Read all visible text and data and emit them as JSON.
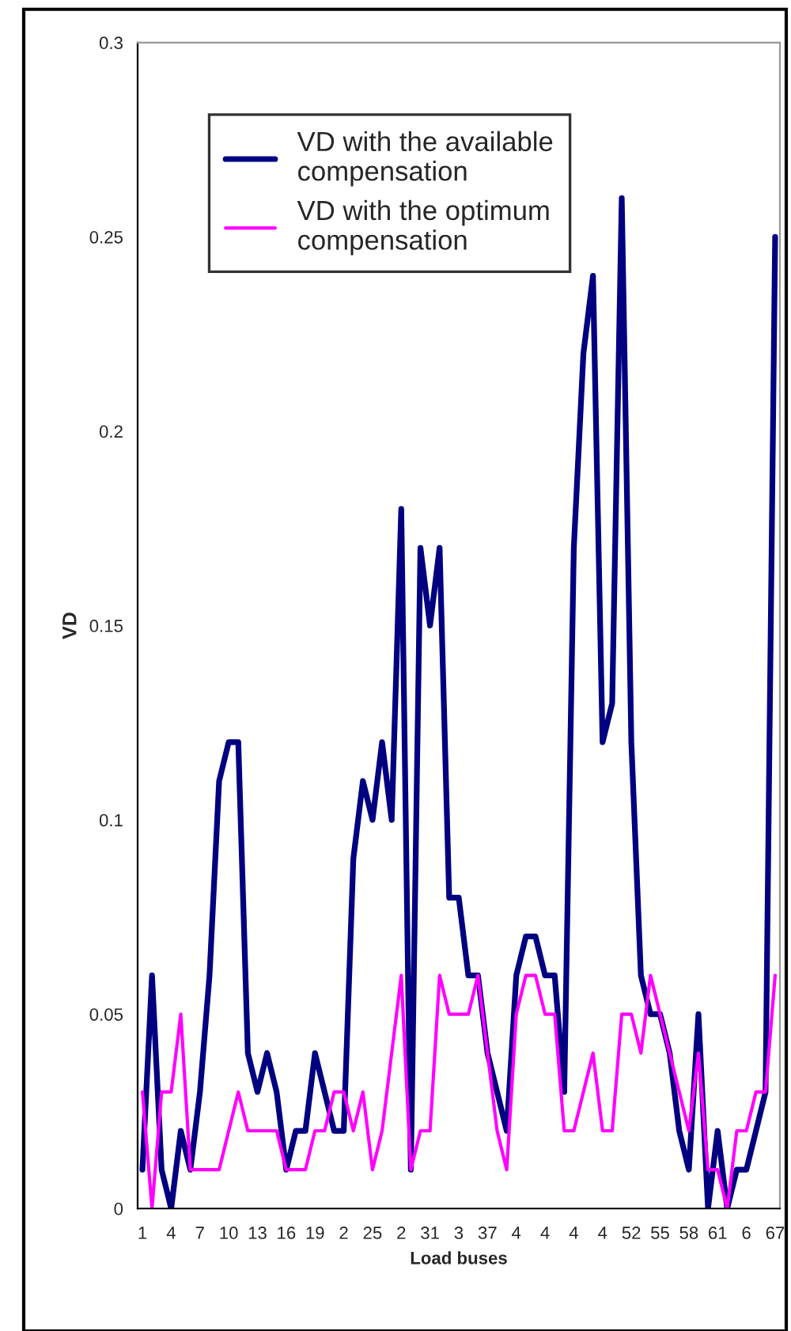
{
  "chart_data": {
    "type": "line",
    "xlabel": "Load buses",
    "ylabel": "VD",
    "categories": [
      "1",
      null,
      null,
      "4",
      null,
      null,
      "7",
      null,
      null,
      "10",
      null,
      null,
      "13",
      null,
      null,
      "16",
      null,
      null,
      "19",
      null,
      null,
      "2",
      null,
      null,
      "25",
      null,
      null,
      "2",
      null,
      null,
      "31",
      null,
      null,
      "3",
      null,
      null,
      "37",
      null,
      null,
      "4",
      null,
      null,
      "4",
      null,
      null,
      "4",
      null,
      null,
      "4",
      null,
      null,
      "52",
      null,
      null,
      "55",
      null,
      null,
      "58",
      null,
      null,
      "61",
      null,
      null,
      "6",
      null,
      null,
      "67"
    ],
    "series": [
      {
        "name": "VD with the available compensation",
        "color": "#000080",
        "values": [
          0.01,
          0.06,
          0.01,
          0,
          0.02,
          0.01,
          0.03,
          0.06,
          0.11,
          0.12,
          0.12,
          0.04,
          0.03,
          0.04,
          0.03,
          0.01,
          0.02,
          0.02,
          0.04,
          0.03,
          0.02,
          0.02,
          0.09,
          0.11,
          0.1,
          0.12,
          0.1,
          0.18,
          0.01,
          0.17,
          0.15,
          0.17,
          0.08,
          0.08,
          0.06,
          0.06,
          0.04,
          0.03,
          0.02,
          0.06,
          0.07,
          0.07,
          0.06,
          0.06,
          0.03,
          0.17,
          0.22,
          0.24,
          0.12,
          0.13,
          0.26,
          0.12,
          0.06,
          0.05,
          0.05,
          0.04,
          0.02,
          0.01,
          0.05,
          0,
          0.02,
          0,
          0.01,
          0.01,
          0.02,
          0.03,
          0.25
        ]
      },
      {
        "name": "VD with the optimum compensation",
        "color": "#ff00ff",
        "values": [
          0.03,
          0,
          0.03,
          0.03,
          0.05,
          0.01,
          0.01,
          0.01,
          0.01,
          0.02,
          0.03,
          0.02,
          0.02,
          0.02,
          0.02,
          0.01,
          0.01,
          0.01,
          0.02,
          0.02,
          0.03,
          0.03,
          0.02,
          0.03,
          0.01,
          0.02,
          0.04,
          0.06,
          0.01,
          0.02,
          0.02,
          0.06,
          0.05,
          0.05,
          0.05,
          0.06,
          0.04,
          0.02,
          0.01,
          0.05,
          0.06,
          0.06,
          0.05,
          0.05,
          0.02,
          0.02,
          0.03,
          0.04,
          0.02,
          0.02,
          0.05,
          0.05,
          0.04,
          0.06,
          0.05,
          0.04,
          0.03,
          0.02,
          0.04,
          0.01,
          0.01,
          0,
          0.02,
          0.02,
          0.03,
          0.03,
          0.06
        ]
      }
    ],
    "ylim": [
      0,
      0.3
    ],
    "yticks": [
      0,
      0.05,
      0.1,
      0.15,
      0.2,
      0.25,
      0.3
    ],
    "grid": false,
    "legend": "top left",
    "line_style": "solid",
    "marker": "none"
  }
}
